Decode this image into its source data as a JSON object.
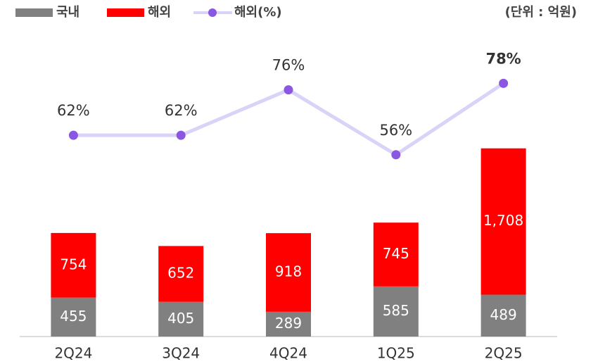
{
  "chart_data": {
    "type": "bar",
    "stacked": true,
    "unit_label": "(단위 : 억원)",
    "categories": [
      "2Q24",
      "3Q24",
      "4Q24",
      "1Q25",
      "2Q25"
    ],
    "series": [
      {
        "name": "국내",
        "type": "bar",
        "color": "#808080",
        "values": [
          455,
          405,
          289,
          585,
          489
        ]
      },
      {
        "name": "해외",
        "type": "bar",
        "color": "#ff0000",
        "values": [
          754,
          652,
          918,
          745,
          1708
        ],
        "value_labels": [
          "754",
          "652",
          "918",
          "745",
          "1,708"
        ]
      },
      {
        "name": "해외(%)",
        "type": "line",
        "axis": "y2",
        "color": "#8a56e2",
        "line_color": "#d8d3f7",
        "values": [
          62,
          62,
          76,
          56,
          78
        ],
        "value_labels": [
          "62%",
          "62%",
          "76%",
          "56%",
          "78%"
        ]
      }
    ],
    "ylim": [
      0,
      3600
    ],
    "y2lim": [
      0,
      95
    ],
    "legend": "top-left"
  }
}
